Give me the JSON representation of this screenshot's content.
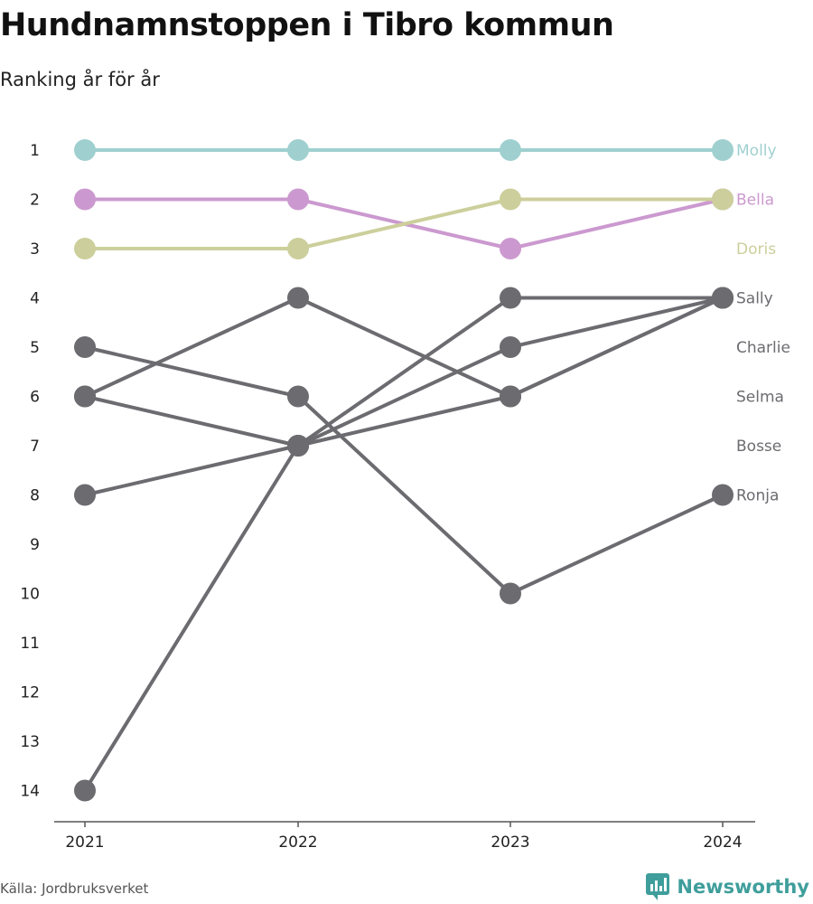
{
  "title": "Hundnamnstoppen i Tibro kommun",
  "subtitle": "Ranking år för år",
  "source": "Källa: Jordbruksverket",
  "brand": "Newsworthy",
  "brand_icon": "newsworthy-logo-icon",
  "colors": {
    "Molly": "#9fd0cf",
    "Bella": "#cb99cf",
    "Doris": "#cccf9b",
    "other": "#6c6b70",
    "axis": "#555555",
    "brand": "#3f9e9b"
  },
  "chart_data": {
    "type": "line",
    "variant": "bump",
    "x": [
      "2021",
      "2022",
      "2023",
      "2024"
    ],
    "y_ticks": [
      "1",
      "2",
      "3",
      "4",
      "5",
      "6",
      "7",
      "8",
      "9",
      "10",
      "11",
      "12",
      "13",
      "14"
    ],
    "ylim": [
      1,
      14
    ],
    "y_inverted": true,
    "grid": false,
    "legend": "end-labels",
    "series": [
      {
        "name": "Molly",
        "values": [
          1,
          1,
          1,
          1
        ],
        "color": "#9fd0cf"
      },
      {
        "name": "Bella",
        "values": [
          2,
          2,
          3,
          2
        ],
        "color": "#cb99cf"
      },
      {
        "name": "Doris",
        "values": [
          3,
          3,
          2,
          2
        ],
        "color": "#cccf9b"
      },
      {
        "name": "Sally",
        "values": [
          14,
          7,
          4,
          4
        ],
        "color": "#6c6b70"
      },
      {
        "name": "Charlie",
        "values": [
          6,
          4,
          6,
          4
        ],
        "color": "#6c6b70"
      },
      {
        "name": "Selma",
        "values": [
          8,
          7,
          5,
          4
        ],
        "color": "#6c6b70"
      },
      {
        "name": "Bosse",
        "values": [
          6,
          7,
          6,
          4
        ],
        "color": "#6c6b70"
      },
      {
        "name": "Ronja",
        "values": [
          5,
          6,
          10,
          8
        ],
        "color": "#6c6b70"
      }
    ]
  }
}
